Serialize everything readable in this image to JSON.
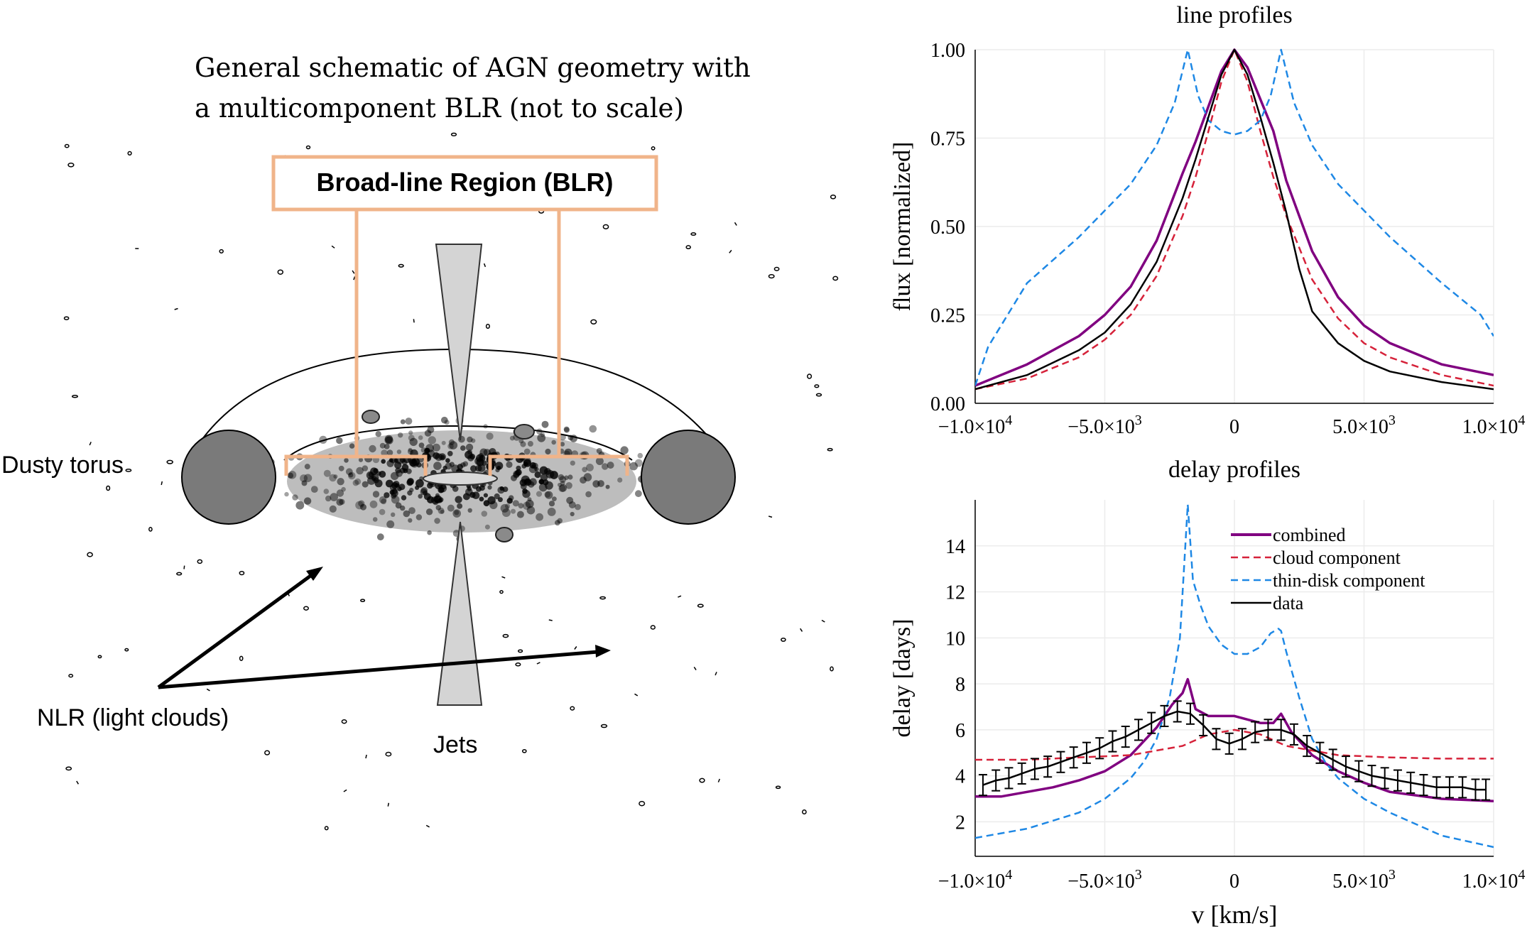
{
  "schematic": {
    "title_line1": "General schematic of AGN geometry with",
    "title_line2": "a multicomponent BLR (not to scale)",
    "blr_label": "Broad-line Region (BLR)",
    "torus_label": "Dusty torus",
    "nlr_label": "NLR (light clouds)",
    "jets_label": "Jets",
    "colors": {
      "blr_box": "#f0b48a",
      "torus": "#7a7a7a",
      "disk": "#bdbdbd",
      "jet": "#d4d4d4"
    }
  },
  "chart_data": [
    {
      "type": "line",
      "title": "line profiles",
      "xlabel": "",
      "ylabel": "flux [normalized]",
      "xlim": [
        -10000,
        10000
      ],
      "ylim": [
        0,
        1
      ],
      "yticks": [
        "0.00",
        "0.25",
        "0.50",
        "0.75",
        "1.00"
      ],
      "xticks": [
        {
          "mant": "−1.0×10",
          "exp": "4"
        },
        {
          "mant": "−5.0×10",
          "exp": "3"
        },
        {
          "mant": "0",
          "exp": ""
        },
        {
          "mant": "5.0×10",
          "exp": "3"
        },
        {
          "mant": "1.0×10",
          "exp": "4"
        }
      ],
      "series": [
        {
          "name": "combined",
          "color": "#800080",
          "dash": "solid",
          "x": [
            -10000,
            -8000,
            -6000,
            -5000,
            -4000,
            -3000,
            -2000,
            -1500,
            -1000,
            -500,
            0,
            500,
            1000,
            1500,
            2000,
            3000,
            4000,
            5000,
            6000,
            8000,
            10000
          ],
          "y": [
            0.05,
            0.11,
            0.19,
            0.25,
            0.33,
            0.46,
            0.65,
            0.74,
            0.84,
            0.94,
            1.0,
            0.95,
            0.86,
            0.77,
            0.63,
            0.43,
            0.3,
            0.22,
            0.17,
            0.11,
            0.08
          ]
        },
        {
          "name": "cloud component",
          "color": "#d6223a",
          "dash": "dashed",
          "x": [
            -10000,
            -8000,
            -6000,
            -5000,
            -4000,
            -3000,
            -2000,
            -1500,
            -1000,
            -500,
            0,
            500,
            1000,
            1500,
            2000,
            3000,
            4000,
            5000,
            6000,
            8000,
            10000
          ],
          "y": [
            0.04,
            0.07,
            0.13,
            0.18,
            0.25,
            0.36,
            0.53,
            0.64,
            0.77,
            0.91,
            1.0,
            0.91,
            0.77,
            0.64,
            0.53,
            0.35,
            0.24,
            0.17,
            0.13,
            0.08,
            0.05
          ]
        },
        {
          "name": "thin-disk component",
          "color": "#1e88e5",
          "dash": "dashed",
          "x": [
            -10000,
            -9500,
            -8000,
            -6000,
            -4000,
            -3000,
            -2300,
            -1800,
            -1400,
            -1000,
            -500,
            0,
            500,
            1000,
            1400,
            1800,
            2300,
            3000,
            4000,
            6000,
            8000,
            9500,
            10000
          ],
          "y": [
            0.05,
            0.16,
            0.34,
            0.47,
            0.62,
            0.73,
            0.85,
            1.0,
            0.87,
            0.8,
            0.77,
            0.76,
            0.77,
            0.8,
            0.87,
            1.0,
            0.85,
            0.73,
            0.62,
            0.47,
            0.34,
            0.25,
            0.19
          ]
        },
        {
          "name": "data",
          "color": "#000000",
          "dash": "solid",
          "x": [
            -10000,
            -8000,
            -6000,
            -5000,
            -4000,
            -3000,
            -2000,
            -1500,
            -1000,
            -500,
            0,
            500,
            1000,
            1500,
            2000,
            2500,
            3000,
            4000,
            5000,
            6000,
            8000,
            10000
          ],
          "y": [
            0.04,
            0.08,
            0.15,
            0.2,
            0.28,
            0.4,
            0.58,
            0.69,
            0.81,
            0.93,
            1.0,
            0.93,
            0.81,
            0.68,
            0.54,
            0.38,
            0.26,
            0.17,
            0.12,
            0.09,
            0.06,
            0.04
          ]
        }
      ]
    },
    {
      "type": "line",
      "title": "delay profiles",
      "xlabel": "v [km/s]",
      "ylabel": "delay [days]",
      "xlim": [
        -10000,
        10000
      ],
      "ylim": [
        0.5,
        16
      ],
      "yticks": [
        "2",
        "4",
        "6",
        "8",
        "10",
        "12",
        "14"
      ],
      "xticks": [
        {
          "mant": "−1.0×10",
          "exp": "4"
        },
        {
          "mant": "−5.0×10",
          "exp": "3"
        },
        {
          "mant": "0",
          "exp": ""
        },
        {
          "mant": "5.0×10",
          "exp": "3"
        },
        {
          "mant": "1.0×10",
          "exp": "4"
        }
      ],
      "legend": [
        "combined",
        "cloud component",
        "thin-disk component",
        "data"
      ],
      "series": [
        {
          "name": "combined",
          "color": "#800080",
          "dash": "solid",
          "x": [
            -10000,
            -9000,
            -8000,
            -7000,
            -6000,
            -5000,
            -4000,
            -3000,
            -2400,
            -2000,
            -1800,
            -1500,
            -1000,
            0,
            1000,
            1500,
            1800,
            2200,
            3000,
            4000,
            5000,
            6000,
            8000,
            10000
          ],
          "y": [
            3.1,
            3.1,
            3.3,
            3.5,
            3.8,
            4.2,
            4.9,
            6.1,
            7.1,
            7.6,
            8.2,
            6.9,
            6.6,
            6.6,
            6.3,
            6.3,
            6.7,
            5.9,
            4.9,
            4.2,
            3.7,
            3.3,
            3.0,
            2.9
          ]
        },
        {
          "name": "cloud component",
          "color": "#d6223a",
          "dash": "dashed",
          "x": [
            -10000,
            -8000,
            -6000,
            -4000,
            -2000,
            -1000,
            0,
            1000,
            2000,
            4000,
            6000,
            8000,
            10000
          ],
          "y": [
            4.7,
            4.7,
            4.8,
            4.9,
            5.3,
            5.8,
            6.0,
            5.8,
            5.3,
            4.9,
            4.8,
            4.75,
            4.75
          ]
        },
        {
          "name": "thin-disk component",
          "color": "#1e88e5",
          "dash": "dashed",
          "x": [
            -10000,
            -9000,
            -8000,
            -6000,
            -5000,
            -4000,
            -3500,
            -3000,
            -2500,
            -2100,
            -1800,
            -1600,
            -1300,
            -1000,
            -500,
            0,
            500,
            1000,
            1400,
            1700,
            1800,
            2000,
            2500,
            3000,
            3500,
            4000,
            5000,
            6000,
            8000,
            10000
          ],
          "y": [
            1.3,
            1.5,
            1.7,
            2.4,
            3.0,
            3.9,
            4.6,
            5.6,
            7.4,
            10.0,
            15.8,
            12.5,
            11.4,
            10.5,
            9.7,
            9.3,
            9.3,
            9.6,
            10.2,
            10.4,
            10.3,
            9.4,
            7.4,
            5.6,
            4.6,
            3.9,
            3.0,
            2.4,
            1.4,
            0.9
          ]
        },
        {
          "name": "data",
          "color": "#000000",
          "dash": "solid",
          "x": [
            -9700,
            -9200,
            -8700,
            -8200,
            -7700,
            -7200,
            -6700,
            -6200,
            -5700,
            -5200,
            -4700,
            -4200,
            -3700,
            -3200,
            -2700,
            -2200,
            -1700,
            -1200,
            -700,
            -200,
            300,
            800,
            1300,
            1800,
            2300,
            2800,
            3300,
            3800,
            4300,
            4800,
            5300,
            5800,
            6300,
            6800,
            7300,
            7800,
            8300,
            8800,
            9300,
            9700
          ],
          "y": [
            3.6,
            3.8,
            3.9,
            4.1,
            4.3,
            4.4,
            4.6,
            4.8,
            5.0,
            5.2,
            5.5,
            5.7,
            6.0,
            6.3,
            6.6,
            6.8,
            6.7,
            6.2,
            5.6,
            5.4,
            5.6,
            5.9,
            6.0,
            6.0,
            5.8,
            5.3,
            5.0,
            4.7,
            4.4,
            4.2,
            4.0,
            3.9,
            3.8,
            3.7,
            3.6,
            3.5,
            3.5,
            3.5,
            3.4,
            3.4
          ],
          "err": 0.45
        }
      ]
    }
  ]
}
